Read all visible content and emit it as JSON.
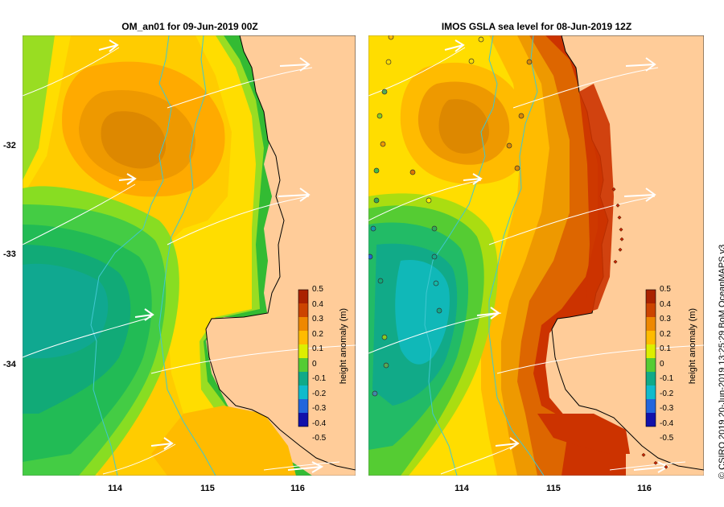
{
  "left_panel": {
    "title": "OM_an01  for 09-Jun-2019 00Z"
  },
  "right_panel": {
    "title": "IMOS GSLA sea level  for 08-Jun-2019 12Z"
  },
  "y_ticks": [
    "-32",
    "-33",
    "-34"
  ],
  "x_ticks": [
    "114",
    "115",
    "116"
  ],
  "colorbar": {
    "ticks": [
      "0.5",
      "0.4",
      "0.3",
      "0.2",
      "0.1",
      "0",
      "-0.1",
      "-0.2",
      "-0.3",
      "-0.4",
      "-0.5"
    ],
    "label": "height anomaly (m)",
    "range": [
      -0.5,
      0.5
    ]
  },
  "credit": "© CSIRO 2019   20-Jun-2019 13:25:29 BoM OceanMAPS v3",
  "colors": {
    "land": "#ffcc99",
    "coast": "#000000",
    "isobath": "#40c8d0",
    "vectors": "#ffffff"
  }
}
